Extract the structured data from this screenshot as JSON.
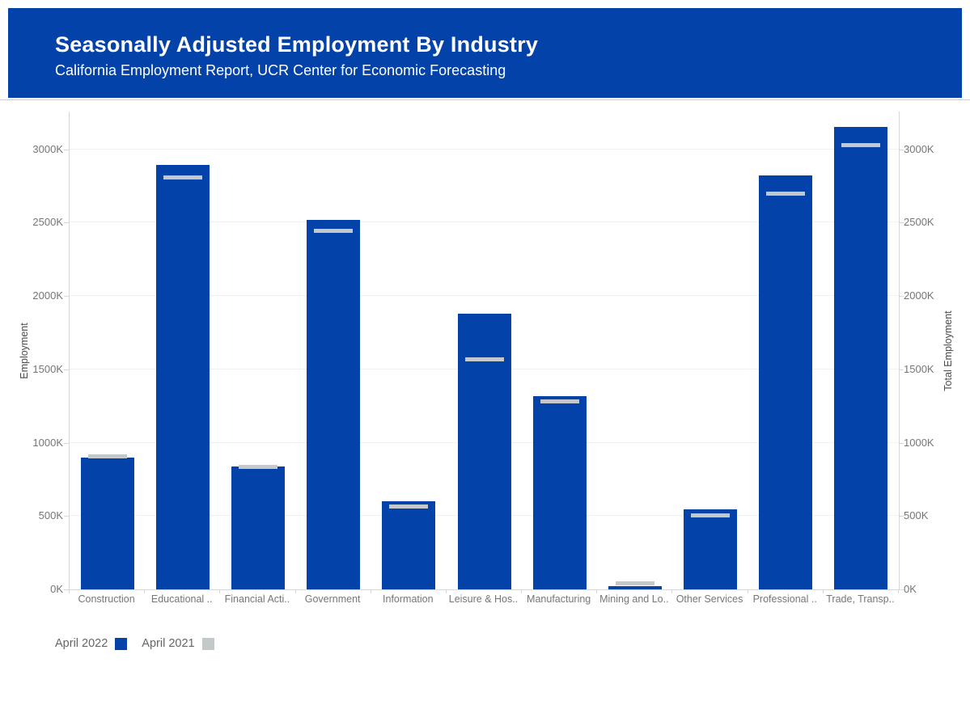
{
  "header": {
    "title": "Seasonally Adjusted Employment By Industry",
    "subtitle": "California Employment Report, UCR Center for Economic Forecasting",
    "background_color": "#0342a9",
    "text_color": "#ffffff"
  },
  "chart_data": {
    "type": "bar",
    "title": "Seasonally Adjusted Employment By Industry",
    "categories": [
      "Construction",
      "Educational ..",
      "Financial Acti..",
      "Government",
      "Information",
      "Leisure & Hos..",
      "Manufacturing",
      "Mining and Lo..",
      "Other Services",
      "Professional ..",
      "Trade, Transp.."
    ],
    "series": [
      {
        "name": "April 2022",
        "mark": "bar",
        "color": "#0342a9",
        "values_thousands": [
          900,
          2890,
          840,
          2520,
          600,
          1880,
          1315,
          24,
          547,
          2820,
          3150
        ]
      },
      {
        "name": "April 2021",
        "mark": "tick",
        "color": "#c3c8ca",
        "values_thousands": [
          905,
          2805,
          835,
          2445,
          565,
          1565,
          1283,
          42,
          503,
          2695,
          3025
        ]
      }
    ],
    "values_unit": "K (thousands of jobs)",
    "xlabel": "",
    "ylabel_left": "Employment",
    "ylabel_right": "Total Employment",
    "y_ticks": [
      "0K",
      "500K",
      "1000K",
      "1500K",
      "2000K",
      "2500K",
      "3000K"
    ],
    "y_tick_values": [
      0,
      500,
      1000,
      1500,
      2000,
      2500,
      3000
    ],
    "ylim": [
      0,
      3256
    ],
    "grid": "horizontal",
    "legend_position": "bottom-left"
  },
  "legend": {
    "items": [
      {
        "label": "April 2022",
        "color": "#0342a9"
      },
      {
        "label": "April 2021",
        "color": "#c3c8ca"
      }
    ]
  }
}
